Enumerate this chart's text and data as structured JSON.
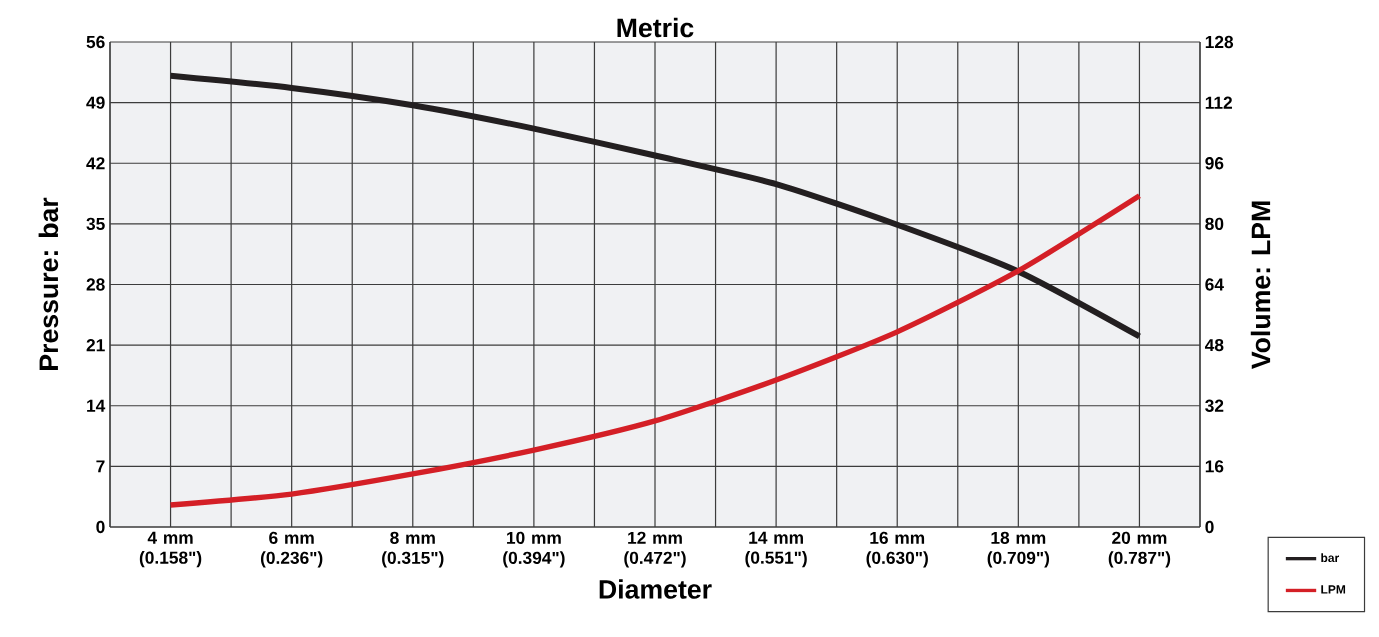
{
  "chart_data": {
    "type": "line",
    "title": "Metric",
    "xlabel": "Diameter",
    "ylabel": "Pressure: bar",
    "y2label": "Volume: LPM",
    "categories": [
      "4 mm (0.158\")",
      "6 mm (0.236\")",
      "8 mm (0.315\")",
      "10 mm (0.394\")",
      "12 mm (0.472\")",
      "14 mm (0.551\")",
      "16 mm (0.630\")",
      "18 mm (0.709\")",
      "20 mm (0.787\")"
    ],
    "series": [
      {
        "name": "bar",
        "color": "#231f20",
        "values": [
          52.1,
          50.7,
          48.7,
          46.0,
          42.9,
          39.6,
          34.9,
          29.5,
          22.0
        ]
      },
      {
        "name": "LPM",
        "color": "#d41f26",
        "axis": "y2",
        "values": [
          5.8,
          8.7,
          14.0,
          20.3,
          28.0,
          38.8,
          51.5,
          67.6,
          87.4
        ]
      }
    ],
    "ylim": [
      0,
      56
    ],
    "yticks": [
      0,
      7,
      14,
      21,
      28,
      35,
      42,
      49,
      56
    ],
    "y2lim": [
      0,
      128
    ],
    "y2ticks": [
      0,
      16,
      32,
      48,
      64,
      80,
      96,
      112,
      128
    ],
    "grid": true,
    "legend": "bottom right",
    "line_style": "solid",
    "marker": "none"
  }
}
